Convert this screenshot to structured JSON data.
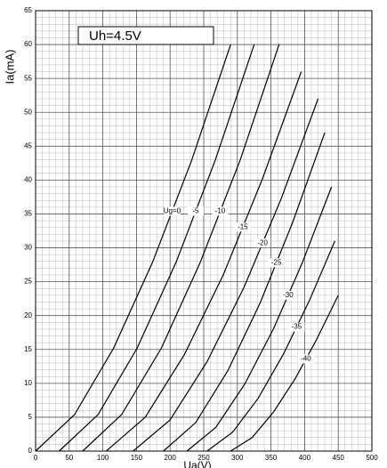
{
  "chart_data": {
    "type": "line",
    "annotation": "Uh=4.5V",
    "xlabel": "Ua(V)",
    "ylabel": "Ia(mA)",
    "xlim": [
      0,
      500
    ],
    "ylim": [
      0,
      65
    ],
    "xticks": [
      0,
      50,
      100,
      150,
      200,
      250,
      300,
      350,
      400,
      450,
      500
    ],
    "yticks": [
      0,
      5,
      10,
      15,
      20,
      25,
      30,
      35,
      40,
      45,
      50,
      55,
      60,
      65
    ],
    "grid": true,
    "series": [
      {
        "name": "Ug=0",
        "color": "#000000",
        "x": [
          0,
          58,
          116,
          174,
          232,
          290
        ],
        "values": [
          0,
          5.4,
          15.2,
          27.9,
          42.9,
          60
        ]
      },
      {
        "name": "-5",
        "color": "#000000",
        "x": [
          35,
          93,
          151,
          209,
          267,
          325
        ],
        "values": [
          0,
          5.4,
          15.2,
          27.9,
          42.9,
          60
        ]
      },
      {
        "name": "-10",
        "color": "#000000",
        "x": [
          70,
          128,
          187,
          245,
          304,
          362
        ],
        "values": [
          0,
          5.4,
          15.2,
          27.9,
          42.9,
          60
        ]
      },
      {
        "name": "-15",
        "color": "#000000",
        "x": [
          105,
          163,
          221,
          279,
          337,
          395
        ],
        "values": [
          0,
          5.0,
          14.2,
          26.0,
          40.1,
          56
        ]
      },
      {
        "name": "-20",
        "color": "#000000",
        "x": [
          145,
          200,
          255,
          310,
          365,
          420
        ],
        "values": [
          0,
          4.6,
          13.2,
          24.2,
          37.2,
          52
        ]
      },
      {
        "name": "-25",
        "color": "#000000",
        "x": [
          190,
          238,
          286,
          334,
          382,
          430
        ],
        "values": [
          0,
          4.2,
          11.9,
          21.9,
          33.7,
          47
        ]
      },
      {
        "name": "-30",
        "color": "#000000",
        "x": [
          225,
          268,
          311,
          354,
          397,
          440
        ],
        "values": [
          0,
          3.5,
          9.9,
          18.1,
          27.9,
          39
        ]
      },
      {
        "name": "-35",
        "color": "#000000",
        "x": [
          255,
          293,
          331,
          369,
          407,
          445
        ],
        "values": [
          0,
          2.8,
          7.8,
          14.4,
          22.2,
          31
        ]
      },
      {
        "name": "-40",
        "color": "#000000",
        "x": [
          290,
          322,
          354,
          386,
          418,
          450
        ],
        "values": [
          0,
          2.0,
          5.8,
          10.7,
          16.5,
          23
        ]
      }
    ]
  }
}
